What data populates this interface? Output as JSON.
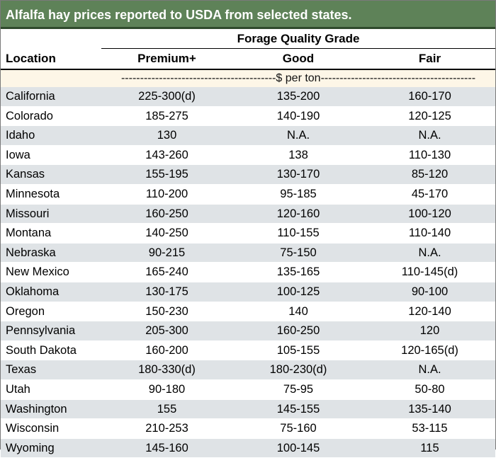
{
  "title": "Alfalfa hay prices reported to USDA from selected states.",
  "header": {
    "group_label": "Forage Quality Grade",
    "location_label": "Location",
    "columns": [
      "Premium+",
      "Good",
      "Fair"
    ],
    "unit_line": "-----------------------------------------$ per ton-----------------------------------------"
  },
  "rows": [
    {
      "location": "California",
      "premium": "225-300(d)",
      "good": "135-200",
      "fair": "160-170"
    },
    {
      "location": "Colorado",
      "premium": "185-275",
      "good": "140-190",
      "fair": "120-125"
    },
    {
      "location": "Idaho",
      "premium": "130",
      "good": "N.A.",
      "fair": "N.A."
    },
    {
      "location": "Iowa",
      "premium": "143-260",
      "good": "138",
      "fair": "110-130"
    },
    {
      "location": "Kansas",
      "premium": "155-195",
      "good": "130-170",
      "fair": "85-120"
    },
    {
      "location": "Minnesota",
      "premium": "110-200",
      "good": "95-185",
      "fair": "45-170"
    },
    {
      "location": "Missouri",
      "premium": "160-250",
      "good": "120-160",
      "fair": "100-120"
    },
    {
      "location": "Montana",
      "premium": "140-250",
      "good": "110-155",
      "fair": "110-140"
    },
    {
      "location": "Nebraska",
      "premium": "90-215",
      "good": "75-150",
      "fair": "N.A."
    },
    {
      "location": "New Mexico",
      "premium": "165-240",
      "good": "135-165",
      "fair": "110-145(d)"
    },
    {
      "location": "Oklahoma",
      "premium": "130-175",
      "good": "100-125",
      "fair": "90-100"
    },
    {
      "location": "Oregon",
      "premium": "150-230",
      "good": "140",
      "fair": "120-140"
    },
    {
      "location": "Pennsylvania",
      "premium": "205-300",
      "good": "160-250",
      "fair": "120"
    },
    {
      "location": "South Dakota",
      "premium": "160-200",
      "good": "105-155",
      "fair": "120-165(d)"
    },
    {
      "location": "Texas",
      "premium": "180-330(d)",
      "good": "180-230(d)",
      "fair": "N.A."
    },
    {
      "location": "Utah",
      "premium": "90-180",
      "good": "75-95",
      "fair": "50-80"
    },
    {
      "location": "Washington",
      "premium": "155",
      "good": "145-155",
      "fair": "135-140"
    },
    {
      "location": "Wisconsin",
      "premium": "210-253",
      "good": "75-160",
      "fair": "53-115"
    },
    {
      "location": "Wyoming",
      "premium": "145-160",
      "good": "100-145",
      "fair": "115"
    }
  ]
}
